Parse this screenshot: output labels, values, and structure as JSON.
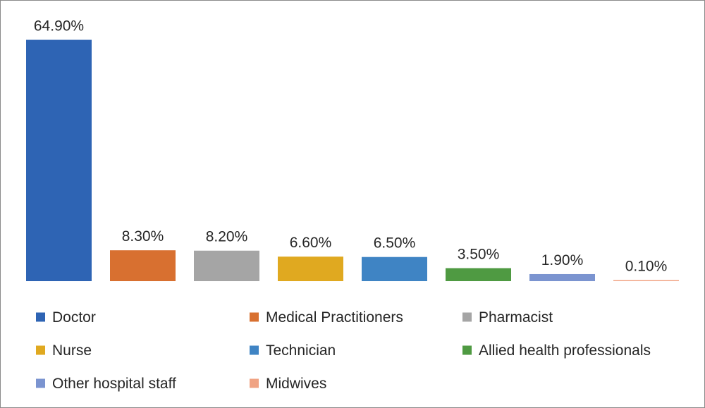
{
  "chart_data": {
    "type": "bar",
    "categories": [
      "Doctor",
      "Medical Practitioners",
      "Pharmacist",
      "Nurse",
      "Technician",
      "Allied health professionals",
      "Other hospital staff",
      "Midwives"
    ],
    "values": [
      64.9,
      8.3,
      8.2,
      6.6,
      6.5,
      3.5,
      1.9,
      0.1
    ],
    "data_labels": [
      "64.90%",
      "8.30%",
      "8.20%",
      "6.60%",
      "6.50%",
      "3.50%",
      "1.90%",
      "0.10%"
    ],
    "colors": [
      "#2e64b4",
      "#d87030",
      "#a5a5a5",
      "#e0a920",
      "#3f84c4",
      "#4f9a42",
      "#7b94d0",
      "#f0a383"
    ],
    "ylim": [
      0,
      65
    ],
    "grid": false,
    "legend": {
      "placement": "bottom",
      "entries": [
        "Doctor",
        "Medical Practitioners",
        "Pharmacist",
        "Nurse",
        "Technician",
        "Allied health professionals",
        "Other hospital staff",
        "Midwives"
      ]
    }
  }
}
